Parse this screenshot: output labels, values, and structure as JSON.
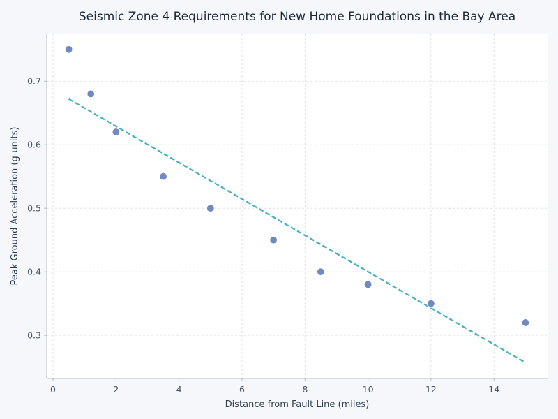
{
  "colors": {
    "background": "#f5f7fa",
    "plot_background": "#ffffff",
    "points": "#7189c2",
    "point_stroke": "#ffffff",
    "trend_line": "#46aebf",
    "grid": "#d6d9de",
    "axis": "#b9bec6"
  },
  "chart_data": {
    "type": "scatter",
    "title": "Seismic Zone 4 Requirements for New Home Foundations in the Bay Area",
    "xlabel": "Distance from Fault Line (miles)",
    "ylabel": "Peak Ground Acceleration (g-units)",
    "xlim": [
      -0.2,
      15.7
    ],
    "ylim": [
      0.232,
      0.775
    ],
    "x_ticks": [
      0,
      2,
      4,
      6,
      8,
      10,
      12,
      14
    ],
    "y_ticks": [
      0.3,
      0.4,
      0.5,
      0.6,
      0.7
    ],
    "x_tick_labels": [
      "0",
      "2",
      "4",
      "6",
      "8",
      "10",
      "12",
      "14"
    ],
    "y_tick_labels": [
      "0.3",
      "0.4",
      "0.5",
      "0.6",
      "0.7"
    ],
    "grid": true,
    "grid_style": "dashed",
    "series": [
      {
        "kind": "points",
        "x": [
          0.5,
          1.2,
          2.0,
          3.5,
          5.0,
          7.0,
          8.5,
          10.0,
          12.0,
          15.0
        ],
        "y": [
          0.75,
          0.68,
          0.62,
          0.55,
          0.5,
          0.45,
          0.4,
          0.38,
          0.35,
          0.32
        ]
      },
      {
        "kind": "trend_line",
        "style": "dashed",
        "x": [
          0.5,
          15.0
        ],
        "y": [
          0.672,
          0.257
        ]
      }
    ]
  }
}
